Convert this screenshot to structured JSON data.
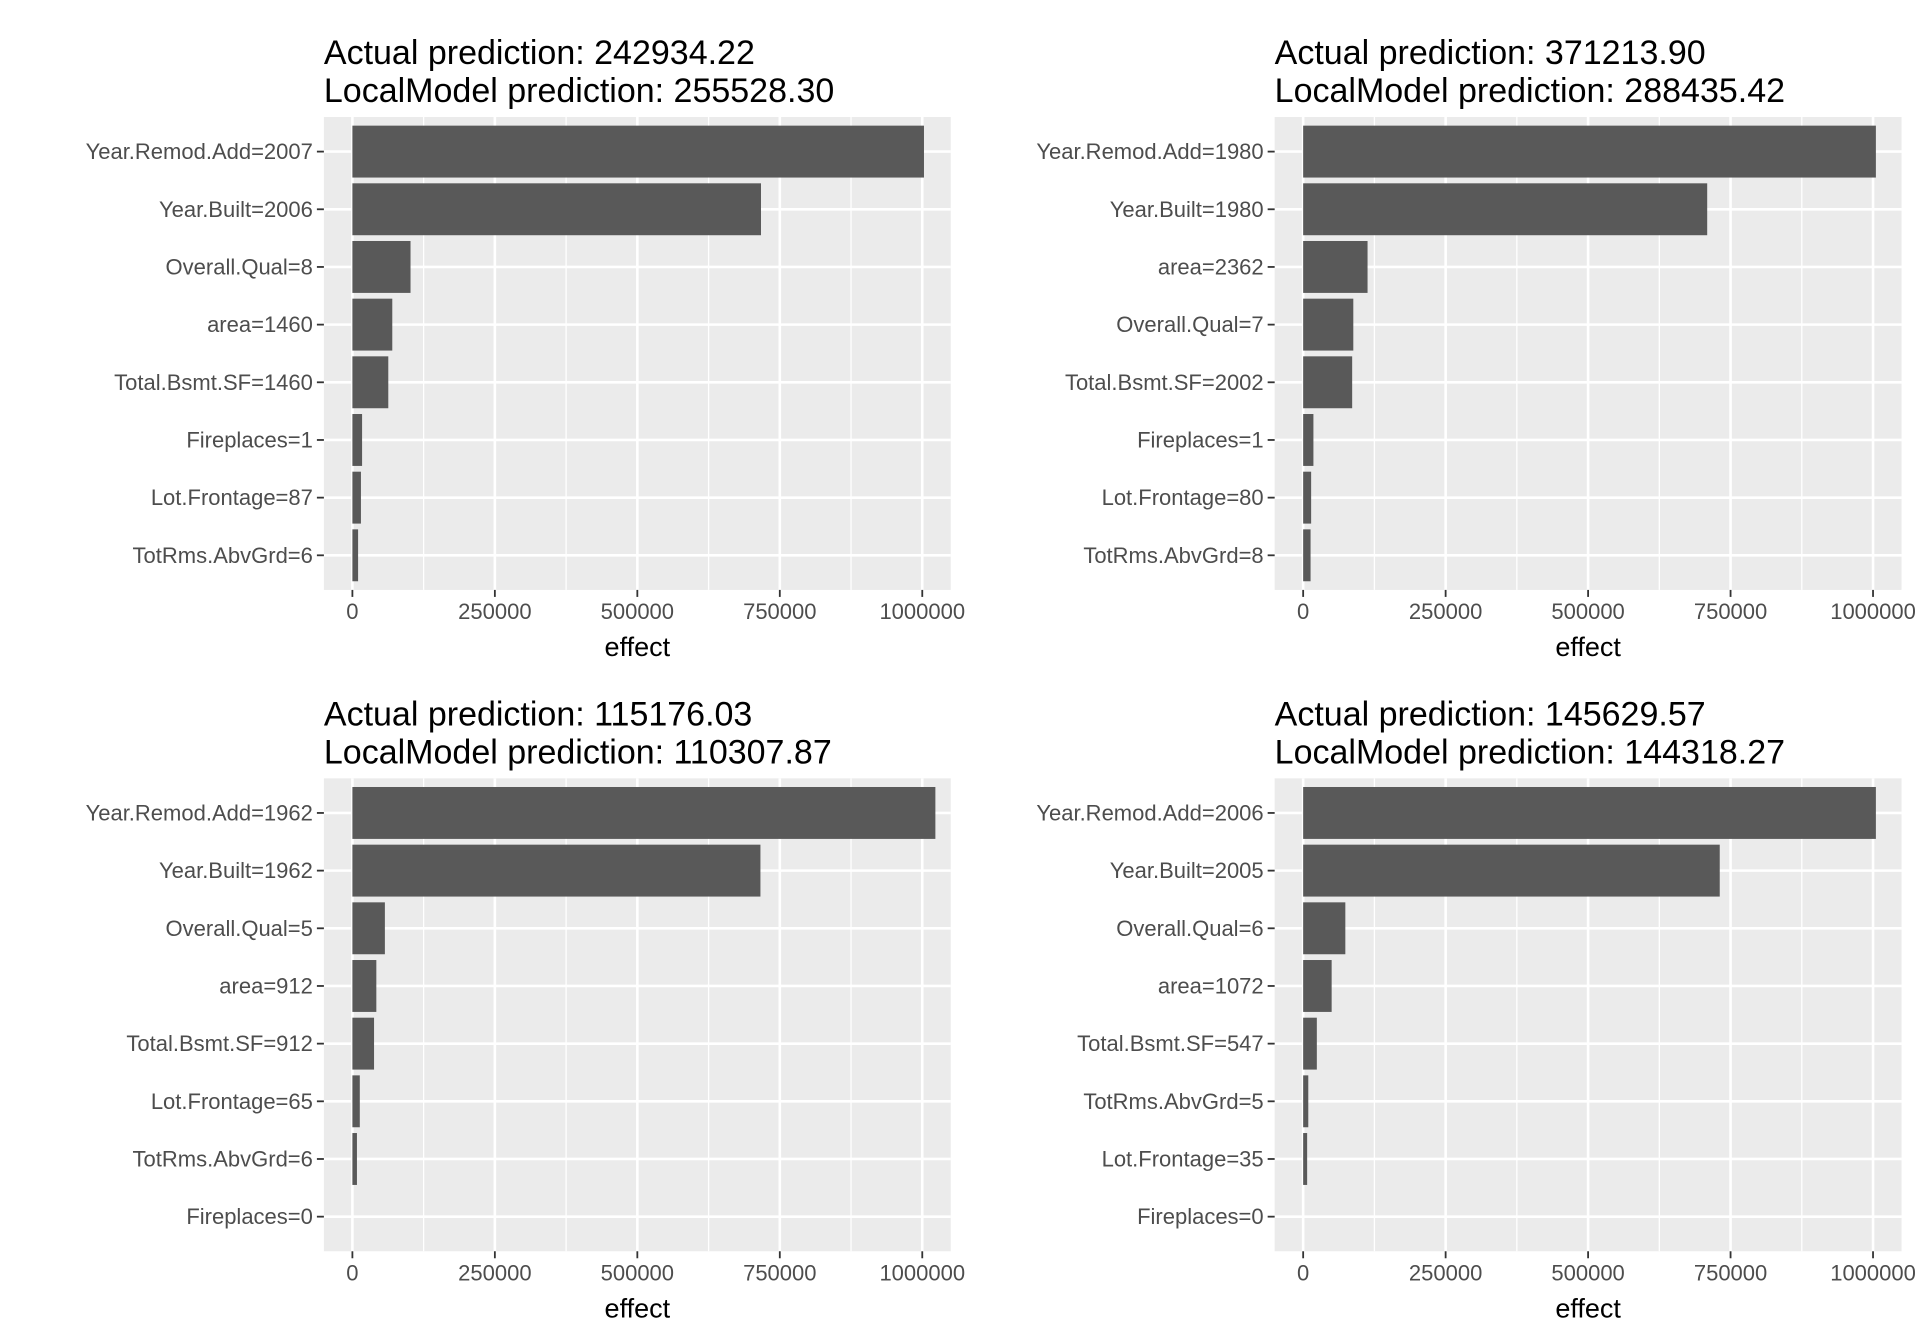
{
  "colors": {
    "panel_background": "#ebebeb",
    "grid_major": "#ffffff",
    "bar_fill": "#595959",
    "tick_text": "#4d4d4d",
    "title_text": "#000000"
  },
  "chart_data": [
    {
      "type": "bar",
      "orientation": "horizontal",
      "title": "Actual prediction: 242934.22",
      "subtitle": "LocalModel prediction: 255528.30",
      "xlabel": "effect",
      "ylabel": "",
      "xlim": [
        -50000,
        1050000
      ],
      "xticks": [
        0,
        250000,
        500000,
        750000,
        1000000
      ],
      "grid": true,
      "categories": [
        "Year.Remod.Add=2007",
        "Year.Built=2006",
        "Overall.Qual=8",
        "area=1460",
        "Total.Bsmt.SF=1460",
        "Fireplaces=1",
        "Lot.Frontage=87",
        "TotRms.AbvGrd=6"
      ],
      "values": [
        1003000,
        717000,
        102000,
        70000,
        63000,
        17000,
        15000,
        10000
      ]
    },
    {
      "type": "bar",
      "orientation": "horizontal",
      "title": "Actual prediction: 371213.90",
      "subtitle": "LocalModel prediction: 288435.42",
      "xlabel": "effect",
      "ylabel": "",
      "xlim": [
        -50000,
        1050000
      ],
      "xticks": [
        0,
        250000,
        500000,
        750000,
        1000000
      ],
      "grid": true,
      "categories": [
        "Year.Remod.Add=1980",
        "Year.Built=1980",
        "area=2362",
        "Overall.Qual=7",
        "Total.Bsmt.SF=2002",
        "Fireplaces=1",
        "Lot.Frontage=80",
        "TotRms.AbvGrd=8"
      ],
      "values": [
        1005000,
        709000,
        113000,
        88000,
        86000,
        18000,
        14000,
        13000
      ]
    },
    {
      "type": "bar",
      "orientation": "horizontal",
      "title": "Actual prediction: 115176.03",
      "subtitle": "LocalModel prediction: 110307.87",
      "xlabel": "effect",
      "ylabel": "",
      "xlim": [
        -50000,
        1050000
      ],
      "xticks": [
        0,
        250000,
        500000,
        750000,
        1000000
      ],
      "grid": true,
      "categories": [
        "Year.Remod.Add=1962",
        "Year.Built=1962",
        "Overall.Qual=5",
        "area=912",
        "Total.Bsmt.SF=912",
        "Lot.Frontage=65",
        "TotRms.AbvGrd=6",
        "Fireplaces=0"
      ],
      "values": [
        1023000,
        716000,
        57000,
        42000,
        38000,
        13000,
        8000,
        0
      ]
    },
    {
      "type": "bar",
      "orientation": "horizontal",
      "title": "Actual prediction: 145629.57",
      "subtitle": "LocalModel prediction: 144318.27",
      "xlabel": "effect",
      "ylabel": "",
      "xlim": [
        -50000,
        1050000
      ],
      "xticks": [
        0,
        250000,
        500000,
        750000,
        1000000
      ],
      "grid": true,
      "categories": [
        "Year.Remod.Add=2006",
        "Year.Built=2005",
        "Overall.Qual=6",
        "area=1072",
        "Total.Bsmt.SF=547",
        "TotRms.AbvGrd=5",
        "Lot.Frontage=35",
        "Fireplaces=0"
      ],
      "values": [
        1005000,
        731000,
        74000,
        50000,
        24000,
        9000,
        7000,
        0
      ]
    }
  ]
}
